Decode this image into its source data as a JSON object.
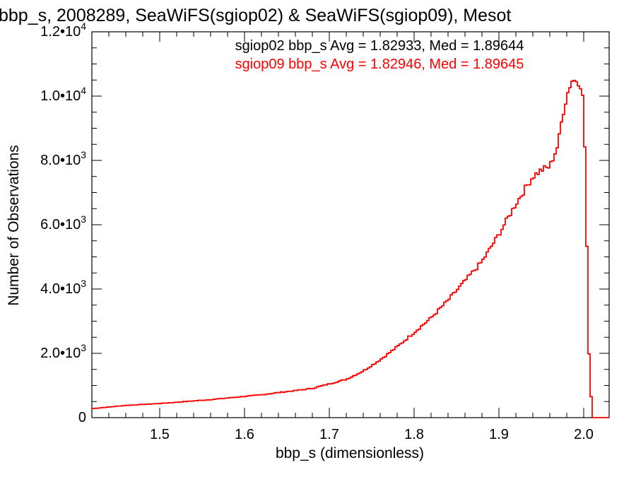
{
  "chart_data": {
    "type": "line",
    "title": "bbp_s, 2008289, SeaWiFS(sgiop02) & SeaWiFS(sgiop09), Mesot",
    "xlabel": "bbp_s (dimensionless)",
    "ylabel": "Number of Observations",
    "xlim": [
      1.42,
      2.03
    ],
    "ylim": [
      0,
      12000
    ],
    "x_ticks": [
      1.5,
      1.6,
      1.7,
      1.8,
      1.9,
      2.0
    ],
    "x_tick_labels": [
      "1.5",
      "1.6",
      "1.7",
      "1.8",
      "1.9",
      "2.0"
    ],
    "y_ticks": [
      {
        "mant": "0",
        "exp": ""
      },
      {
        "mant": "2.0•10",
        "exp": "3"
      },
      {
        "mant": "4.0•10",
        "exp": "3"
      },
      {
        "mant": "6.0•10",
        "exp": "3"
      },
      {
        "mant": "8.0•10",
        "exp": "3"
      },
      {
        "mant": "1.0•10",
        "exp": "4"
      },
      {
        "mant": "1.2•10",
        "exp": "4"
      }
    ],
    "y_tick_values": [
      0,
      2000,
      4000,
      6000,
      8000,
      10000,
      12000
    ],
    "annotations": [
      {
        "text": "sgiop02 bbp_s Avg = 1.82933, Med = 1.89644",
        "color": "#000000"
      },
      {
        "text": "sgiop09 bbp_s Avg = 1.82946, Med = 1.89645",
        "color": "#ff0000"
      }
    ],
    "grid": false,
    "series": [
      {
        "color": "#ff0000",
        "x": [
          1.42,
          1.44,
          1.46,
          1.48,
          1.5,
          1.52,
          1.54,
          1.56,
          1.58,
          1.6,
          1.62,
          1.64,
          1.66,
          1.68,
          1.7,
          1.72,
          1.74,
          1.76,
          1.78,
          1.8,
          1.82,
          1.84,
          1.86,
          1.88,
          1.9,
          1.92,
          1.94,
          1.95,
          1.96,
          1.97,
          1.975,
          1.98,
          1.985,
          1.99,
          1.995,
          2.0,
          2.003,
          2.006,
          2.01,
          2.03
        ],
        "y": [
          280,
          330,
          380,
          410,
          440,
          480,
          520,
          560,
          610,
          660,
          710,
          780,
          840,
          910,
          1050,
          1190,
          1450,
          1800,
          2200,
          2650,
          3100,
          3650,
          4250,
          4850,
          5700,
          6650,
          7500,
          7700,
          7800,
          8500,
          9400,
          10000,
          10450,
          10500,
          10300,
          10000,
          6500,
          2100,
          0,
          0
        ]
      }
    ]
  }
}
